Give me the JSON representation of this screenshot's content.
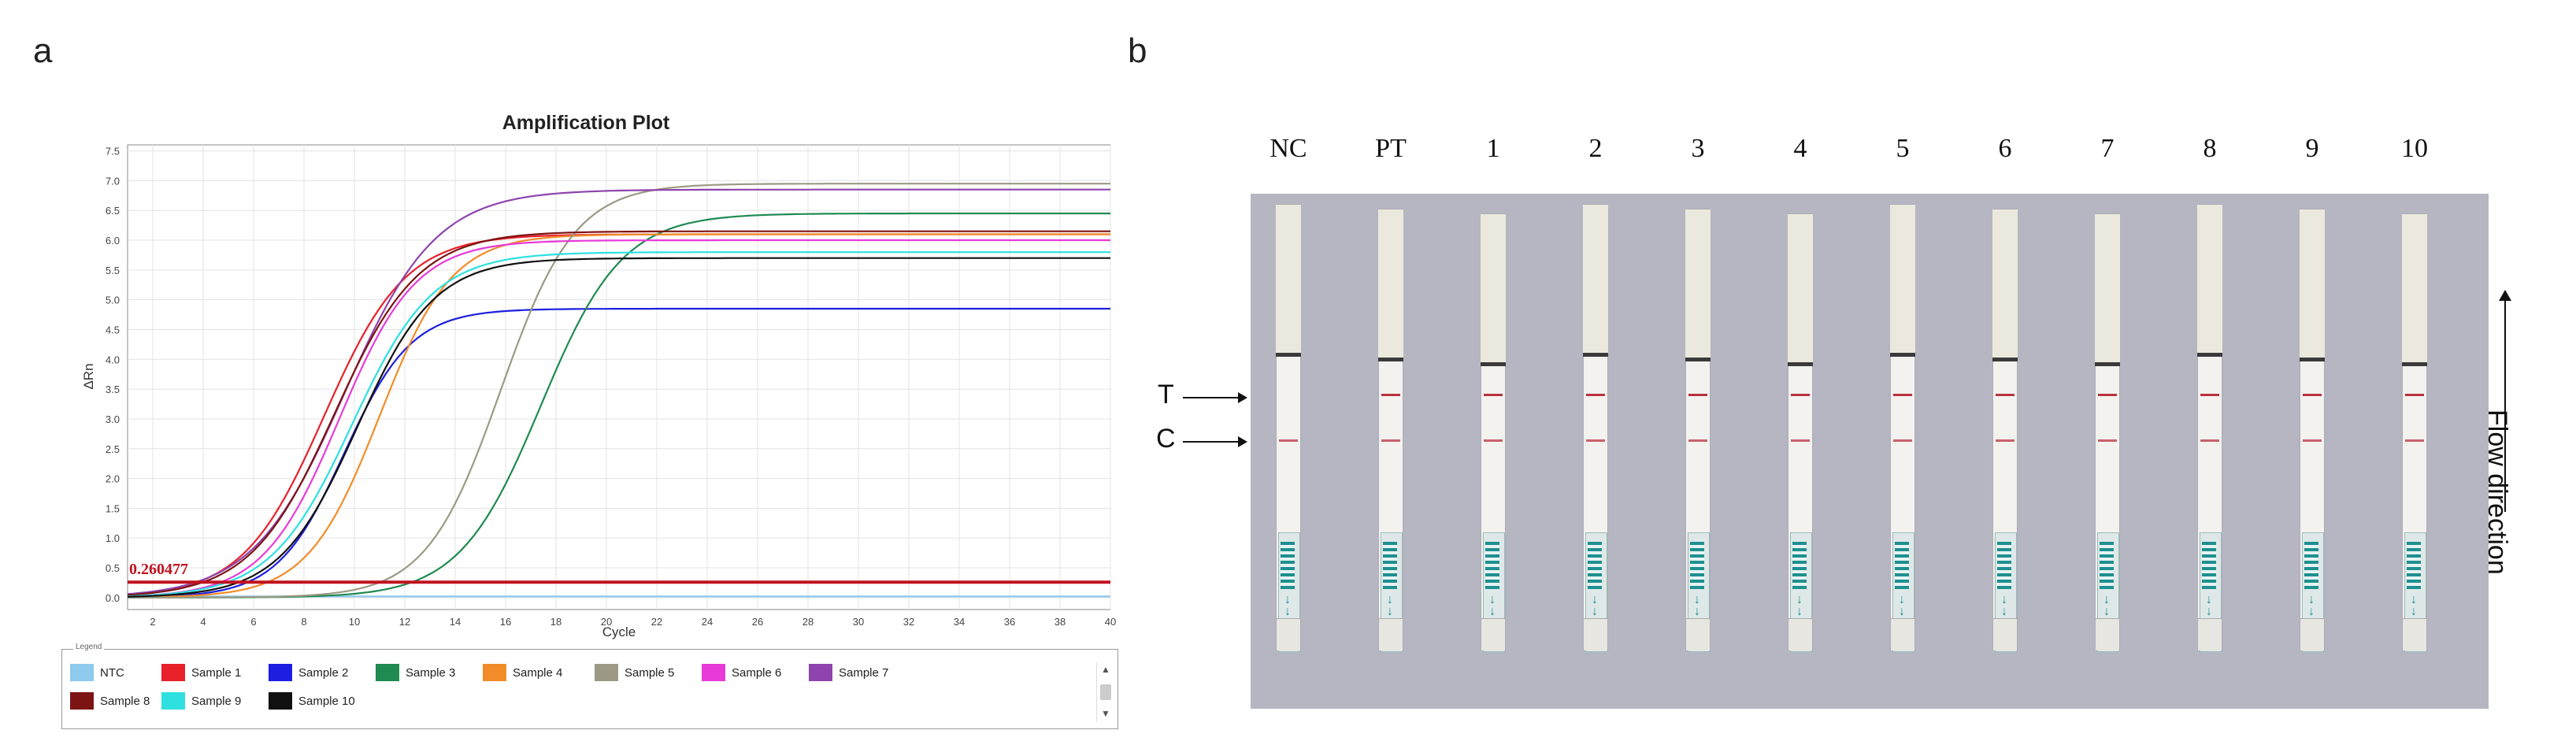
{
  "panels": {
    "a_letter": "a",
    "b_letter": "b"
  },
  "chart_data": {
    "type": "line",
    "title": "Amplification Plot",
    "xlabel": "Cycle",
    "ylabel": "ΔRn",
    "xlim": [
      1,
      40
    ],
    "ylim": [
      -0.2,
      7.6
    ],
    "xticks": [
      2,
      4,
      6,
      8,
      10,
      12,
      14,
      16,
      18,
      20,
      22,
      24,
      26,
      28,
      30,
      32,
      34,
      36,
      38,
      40
    ],
    "yticks": [
      0.0,
      0.5,
      1.0,
      1.5,
      2.0,
      2.5,
      3.0,
      3.5,
      4.0,
      4.5,
      5.0,
      5.5,
      6.0,
      6.5,
      7.0,
      7.5
    ],
    "grid": true,
    "threshold": {
      "label": "0.260477",
      "value": 0.26,
      "color": "#c1121f"
    },
    "series": [
      {
        "name": "NTC",
        "color": "#8ec9ee",
        "mid": 99,
        "k": 0,
        "top": 0.0,
        "base": 0.02
      },
      {
        "name": "Sample 1",
        "color": "#e8202a",
        "mid": 8.8,
        "k": 0.62,
        "top": 6.1,
        "base": 0.0
      },
      {
        "name": "Sample 2",
        "color": "#1d1ee0",
        "mid": 9.6,
        "k": 0.75,
        "top": 4.85,
        "base": 0.0
      },
      {
        "name": "Sample 3",
        "color": "#1f8a52",
        "mid": 17.4,
        "k": 0.62,
        "top": 6.45,
        "base": 0.0
      },
      {
        "name": "Sample 4",
        "color": "#f28c28",
        "mid": 11.0,
        "k": 0.7,
        "top": 6.1,
        "base": 0.0
      },
      {
        "name": "Sample 5",
        "color": "#9c9a84",
        "mid": 15.8,
        "k": 0.68,
        "top": 6.95,
        "base": 0.0
      },
      {
        "name": "Sample 6",
        "color": "#e83ad8",
        "mid": 9.4,
        "k": 0.66,
        "top": 6.0,
        "base": 0.0
      },
      {
        "name": "Sample 7",
        "color": "#8e44ad",
        "mid": 9.6,
        "k": 0.55,
        "top": 6.85,
        "base": 0.0
      },
      {
        "name": "Sample 8",
        "color": "#7d1414",
        "mid": 9.2,
        "k": 0.6,
        "top": 6.15,
        "base": 0.0
      },
      {
        "name": "Sample 9",
        "color": "#2ee0e0",
        "mid": 9.9,
        "k": 0.62,
        "top": 5.8,
        "base": 0.0
      },
      {
        "name": "Sample 10",
        "color": "#111111",
        "mid": 10.1,
        "k": 0.65,
        "top": 5.7,
        "base": 0.0
      }
    ]
  },
  "legend": {
    "caption": "Legend",
    "items": [
      {
        "label": "NTC",
        "color": "#8ec9ee"
      },
      {
        "label": "Sample 1",
        "color": "#e8202a"
      },
      {
        "label": "Sample 2",
        "color": "#1d1ee0"
      },
      {
        "label": "Sample 3",
        "color": "#1f8a52"
      },
      {
        "label": "Sample 4",
        "color": "#f28c28"
      },
      {
        "label": "Sample 5",
        "color": "#9c9a84"
      },
      {
        "label": "Sample 6",
        "color": "#e83ad8"
      },
      {
        "label": "Sample 7",
        "color": "#8e44ad"
      },
      {
        "label": "Sample 8",
        "color": "#7d1414"
      },
      {
        "label": "Sample 9",
        "color": "#2ee0e0"
      },
      {
        "label": "Sample 10",
        "color": "#111111"
      }
    ]
  },
  "strip_panel": {
    "lanes": [
      {
        "label": "NC",
        "test_line": false,
        "control_line": true
      },
      {
        "label": "PT",
        "test_line": true,
        "control_line": true
      },
      {
        "label": "1",
        "test_line": true,
        "control_line": true
      },
      {
        "label": "2",
        "test_line": true,
        "control_line": true
      },
      {
        "label": "3",
        "test_line": true,
        "control_line": true
      },
      {
        "label": "4",
        "test_line": true,
        "control_line": true
      },
      {
        "label": "5",
        "test_line": true,
        "control_line": true
      },
      {
        "label": "6",
        "test_line": true,
        "control_line": true
      },
      {
        "label": "7",
        "test_line": true,
        "control_line": true
      },
      {
        "label": "8",
        "test_line": true,
        "control_line": true
      },
      {
        "label": "9",
        "test_line": true,
        "control_line": true
      },
      {
        "label": "10",
        "test_line": true,
        "control_line": true
      }
    ],
    "t_label": "T",
    "c_label": "C",
    "flow_label": "Flow direction",
    "band_color": "#b8323f"
  }
}
